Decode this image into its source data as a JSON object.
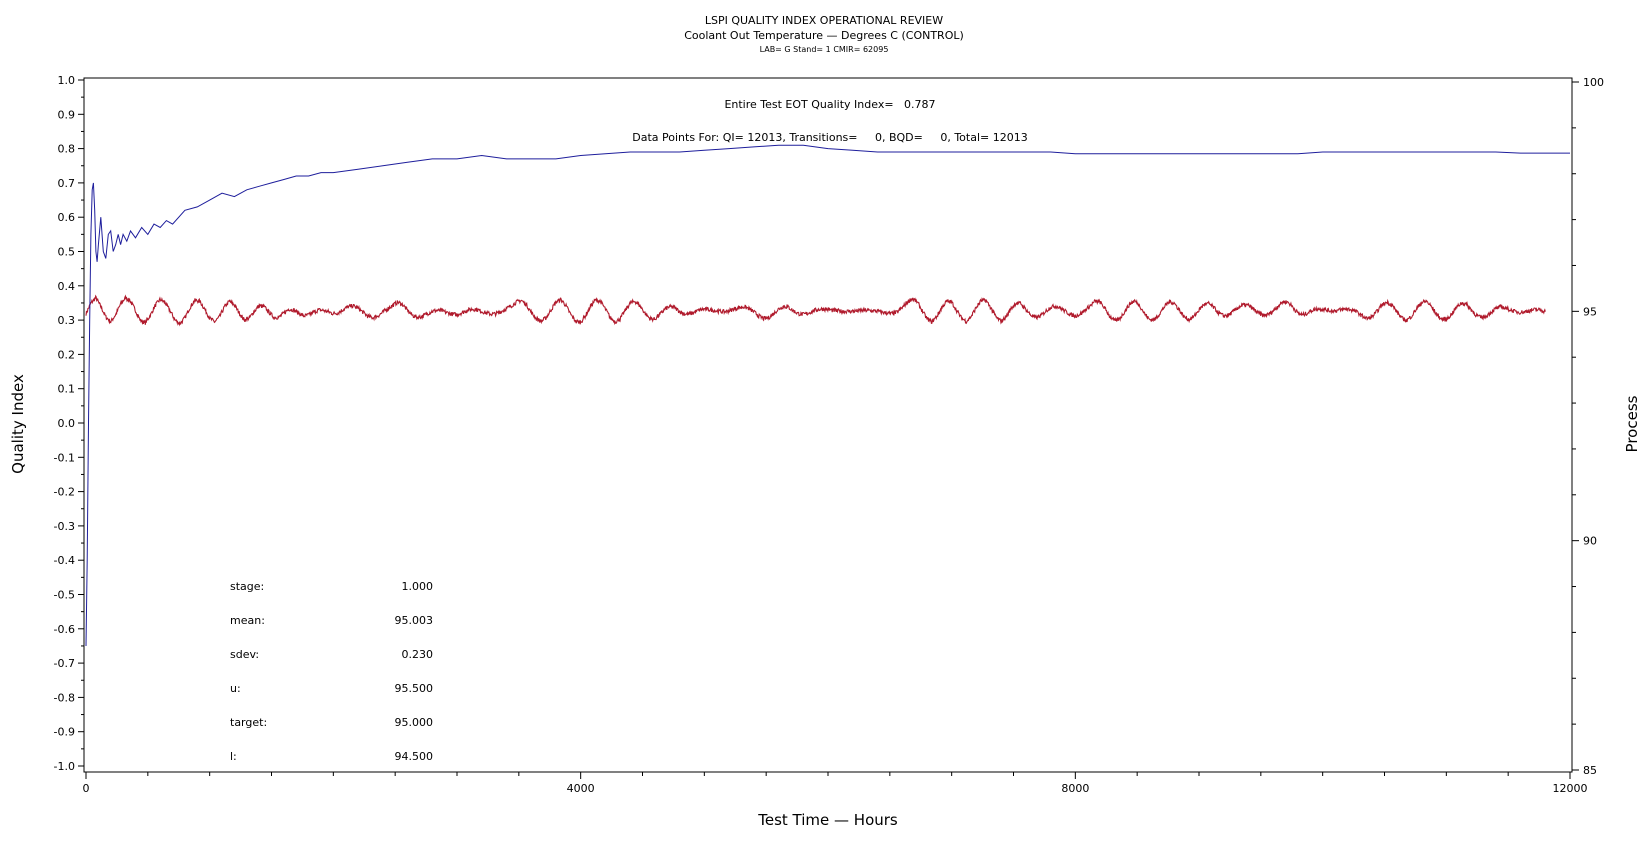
{
  "chart_data": {
    "type": "line",
    "title": "LSPI QUALITY INDEX OPERATIONAL REVIEW",
    "subtitle": "Coolant Out Temperature — Degrees C (CONTROL)",
    "subtitle2": "LAB= G Stand= 1 CMIR= 62095",
    "xlabel": "Test Time — Hours",
    "ylabel_left": "Quality Index",
    "ylabel_right": "Process",
    "xlim": [
      0,
      12000
    ],
    "ylim_left": [
      -1.0,
      1.0
    ],
    "ylim_right": [
      85,
      100
    ],
    "x_ticks": [
      "0",
      "4000",
      "8000",
      "12000"
    ],
    "y_left_ticks": [
      "-1.0",
      "-0.9",
      "-0.8",
      "-0.7",
      "-0.6",
      "-0.5",
      "-0.4",
      "-0.3",
      "-0.2",
      "-0.1",
      "0.0",
      "0.1",
      "0.2",
      "0.3",
      "0.4",
      "0.5",
      "0.6",
      "0.7",
      "0.8",
      "0.9",
      "1.0"
    ],
    "y_right_ticks": [
      "85",
      "90",
      "95",
      "100"
    ],
    "grid": false,
    "annotations": {
      "qi_line": "Entire Test EOT Quality Index=   0.787",
      "points_line": "Data Points For: QI= 12013, Transitions=     0, BQD=     0, Total= 12013"
    },
    "stats": [
      {
        "label": "stage:",
        "value": "1.000"
      },
      {
        "label": "mean:",
        "value": "95.003"
      },
      {
        "label": "sdev:",
        "value": "0.230"
      },
      {
        "label": "u:",
        "value": "95.500"
      },
      {
        "label": "target:",
        "value": "95.000"
      },
      {
        "label": "l:",
        "value": "94.500"
      }
    ],
    "series": [
      {
        "color": "#1e1e9c",
        "axis": "left",
        "x": [
          0,
          10,
          20,
          30,
          40,
          50,
          60,
          70,
          80,
          90,
          100,
          120,
          140,
          160,
          180,
          200,
          220,
          240,
          260,
          280,
          300,
          330,
          360,
          400,
          450,
          500,
          550,
          600,
          650,
          700,
          800,
          900,
          1000,
          1100,
          1200,
          1300,
          1400,
          1500,
          1600,
          1700,
          1800,
          1900,
          2000,
          2200,
          2400,
          2600,
          2800,
          3000,
          3200,
          3400,
          3600,
          3800,
          4000,
          4200,
          4400,
          4600,
          4800,
          5000,
          5200,
          5400,
          5600,
          5800,
          6000,
          6200,
          6400,
          6600,
          6800,
          7000,
          7200,
          7400,
          7600,
          7800,
          8000,
          8200,
          8400,
          8600,
          8800,
          9000,
          9200,
          9400,
          9600,
          9800,
          10000,
          10200,
          10400,
          10600,
          10800,
          11000,
          11200,
          11400,
          11600,
          11800,
          12000
        ],
        "values": [
          -0.65,
          -0.4,
          0.0,
          0.3,
          0.55,
          0.68,
          0.7,
          0.62,
          0.5,
          0.47,
          0.52,
          0.6,
          0.5,
          0.48,
          0.55,
          0.56,
          0.5,
          0.52,
          0.55,
          0.52,
          0.55,
          0.53,
          0.56,
          0.54,
          0.57,
          0.55,
          0.58,
          0.57,
          0.59,
          0.58,
          0.62,
          0.63,
          0.65,
          0.67,
          0.66,
          0.68,
          0.69,
          0.7,
          0.71,
          0.72,
          0.72,
          0.73,
          0.73,
          0.74,
          0.75,
          0.76,
          0.77,
          0.77,
          0.78,
          0.77,
          0.77,
          0.77,
          0.78,
          0.785,
          0.79,
          0.79,
          0.79,
          0.795,
          0.8,
          0.805,
          0.81,
          0.81,
          0.8,
          0.795,
          0.79,
          0.79,
          0.79,
          0.79,
          0.79,
          0.79,
          0.79,
          0.79,
          0.785,
          0.785,
          0.785,
          0.785,
          0.785,
          0.785,
          0.785,
          0.785,
          0.785,
          0.785,
          0.79,
          0.79,
          0.79,
          0.79,
          0.79,
          0.79,
          0.79,
          0.79,
          0.787,
          0.787,
          0.787
        ]
      },
      {
        "color": "#b01a2c",
        "axis": "right",
        "x_start": 0,
        "x_step": 40,
        "values": [
          94.95,
          95.18,
          95.3,
          95.1,
          94.88,
          94.77,
          94.93,
          95.16,
          95.3,
          95.22,
          95.02,
          94.8,
          94.75,
          94.91,
          95.13,
          95.26,
          95.19,
          95.01,
          94.81,
          94.73,
          94.86,
          95.08,
          95.24,
          95.22,
          95.05,
          94.85,
          94.77,
          94.88,
          95.1,
          95.22,
          95.14,
          94.96,
          94.81,
          94.85,
          95.0,
          95.12,
          95.1,
          94.98,
          94.87,
          94.87,
          94.96,
          95.05,
          95.03,
          94.96,
          94.9,
          94.92,
          94.98,
          95.03,
          95.02,
          94.99,
          94.95,
          94.97,
          95.04,
          95.1,
          95.12,
          95.07,
          94.98,
          94.89,
          94.86,
          94.9,
          94.98,
          95.06,
          95.13,
          95.2,
          95.15,
          95.02,
          94.91,
          94.87,
          94.89,
          94.95,
          95.0,
          95.02,
          95.01,
          94.97,
          94.94,
          94.93,
          94.97,
          95.02,
          95.05,
          95.04,
          95.0,
          94.96,
          94.94,
          94.95,
          95.0,
          95.06,
          95.12,
          95.2,
          95.24,
          95.15,
          94.98,
          94.84,
          94.78,
          94.86,
          95.03,
          95.2,
          95.26,
          95.13,
          94.93,
          94.78,
          94.76,
          94.91,
          95.11,
          95.25,
          95.22,
          95.05,
          94.86,
          94.77,
          94.84,
          95.02,
          95.18,
          95.22,
          95.12,
          94.96,
          94.84,
          94.83,
          94.93,
          95.05,
          95.1,
          95.08,
          95.0,
          94.94,
          94.94,
          94.98,
          95.03,
          95.05,
          95.04,
          95.02,
          95.0,
          94.99,
          95.01,
          95.05,
          95.08,
          95.1,
          95.06,
          94.99,
          94.9,
          94.84,
          94.86,
          94.95,
          95.05,
          95.11,
          95.09,
          95.01,
          94.95,
          94.93,
          94.96,
          95.01,
          95.04,
          95.05,
          95.04,
          95.02,
          95.01,
          95.0,
          95.0,
          95.0,
          95.01,
          95.02,
          95.02,
          95.01,
          95.0,
          94.98,
          94.96,
          94.95,
          94.98,
          95.08,
          95.2,
          95.28,
          95.21,
          95.02,
          94.84,
          94.77,
          94.89,
          95.08,
          95.22,
          95.2,
          95.02,
          94.85,
          94.78,
          94.9,
          95.09,
          95.24,
          95.23,
          95.06,
          94.87,
          94.78,
          94.88,
          95.06,
          95.18,
          95.17,
          95.04,
          94.92,
          94.86,
          94.9,
          95.0,
          95.09,
          95.12,
          95.07,
          95.0,
          94.93,
          94.9,
          94.94,
          95.03,
          95.12,
          95.22,
          95.2,
          95.06,
          94.89,
          94.79,
          94.84,
          95.0,
          95.16,
          95.23,
          95.13,
          94.95,
          94.82,
          94.82,
          94.94,
          95.1,
          95.21,
          95.18,
          95.03,
          94.88,
          94.82,
          94.89,
          95.03,
          95.15,
          95.17,
          95.08,
          94.96,
          94.9,
          94.92,
          95.0,
          95.09,
          95.14,
          95.13,
          95.05,
          94.96,
          94.91,
          94.93,
          95.01,
          95.12,
          95.21,
          95.2,
          95.09,
          94.96,
          94.92,
          94.97,
          95.03,
          95.06,
          95.05,
          95.02,
          95.01,
          95.02,
          95.04,
          95.05,
          95.03,
          94.98,
          94.9,
          94.84,
          94.88,
          95.0,
          95.14,
          95.2,
          95.14,
          94.99,
          94.85,
          94.8,
          94.9,
          95.06,
          95.19,
          95.22,
          95.1,
          94.94,
          94.83,
          94.82,
          94.93,
          95.08,
          95.18,
          95.16,
          95.04,
          94.92,
          94.86,
          94.89,
          94.98,
          95.06,
          95.1,
          95.07,
          95.03,
          94.99,
          94.98,
          94.99,
          95.02,
          95.04,
          95.03,
          95.0
        ]
      }
    ]
  }
}
